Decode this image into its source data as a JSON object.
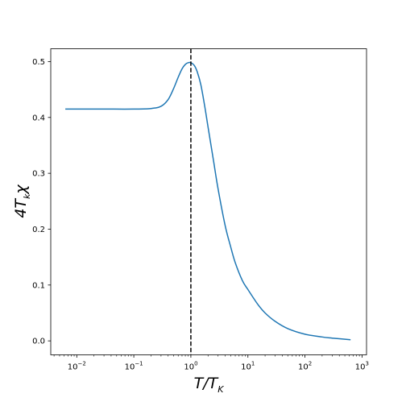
{
  "chart_data": {
    "type": "line",
    "xscale": "log",
    "xlim": [
      0.0035,
      1200
    ],
    "ylim": [
      -0.025,
      0.523
    ],
    "xlabel": {
      "main": "T/T",
      "sub": "K"
    },
    "ylabel": {
      "main": "4T",
      "sub": "k",
      "tail": "χ"
    },
    "x_ticks": [
      {
        "value": 0.01,
        "base": "10",
        "exp": "−2"
      },
      {
        "value": 0.1,
        "base": "10",
        "exp": "−1"
      },
      {
        "value": 1,
        "base": "10",
        "exp": "0"
      },
      {
        "value": 10,
        "base": "10",
        "exp": "1"
      },
      {
        "value": 100,
        "base": "10",
        "exp": "2"
      },
      {
        "value": 1000,
        "base": "10",
        "exp": "3"
      }
    ],
    "y_ticks": [
      {
        "value": 0.0,
        "label": "0.0"
      },
      {
        "value": 0.1,
        "label": "0.1"
      },
      {
        "value": 0.2,
        "label": "0.2"
      },
      {
        "value": 0.3,
        "label": "0.3"
      },
      {
        "value": 0.4,
        "label": "0.4"
      },
      {
        "value": 0.5,
        "label": "0.5"
      }
    ],
    "grid": false,
    "series": [
      {
        "color": "#1f77b4",
        "points": [
          [
            0.0063,
            0.415
          ],
          [
            0.01,
            0.415
          ],
          [
            0.03,
            0.415
          ],
          [
            0.1,
            0.415
          ],
          [
            0.2,
            0.416
          ],
          [
            0.3,
            0.42
          ],
          [
            0.4,
            0.432
          ],
          [
            0.5,
            0.452
          ],
          [
            0.6,
            0.472
          ],
          [
            0.7,
            0.487
          ],
          [
            0.8,
            0.495
          ],
          [
            0.9,
            0.498
          ],
          [
            1.0,
            0.498
          ],
          [
            1.15,
            0.493
          ],
          [
            1.3,
            0.481
          ],
          [
            1.5,
            0.458
          ],
          [
            1.75,
            0.42
          ],
          [
            2.0,
            0.383
          ],
          [
            2.5,
            0.322
          ],
          [
            3.0,
            0.272
          ],
          [
            4.0,
            0.206
          ],
          [
            5.0,
            0.168
          ],
          [
            6.0,
            0.14
          ],
          [
            8.0,
            0.108
          ],
          [
            10.0,
            0.092
          ],
          [
            15.0,
            0.065
          ],
          [
            20.0,
            0.05
          ],
          [
            30.0,
            0.035
          ],
          [
            50.0,
            0.022
          ],
          [
            100.0,
            0.012
          ],
          [
            200.0,
            0.007
          ],
          [
            300.0,
            0.005
          ],
          [
            630.0,
            0.002
          ]
        ]
      }
    ],
    "reference_lines": [
      {
        "orientation": "vertical",
        "x": 1,
        "color": "#000000",
        "style": "dashed"
      }
    ]
  }
}
